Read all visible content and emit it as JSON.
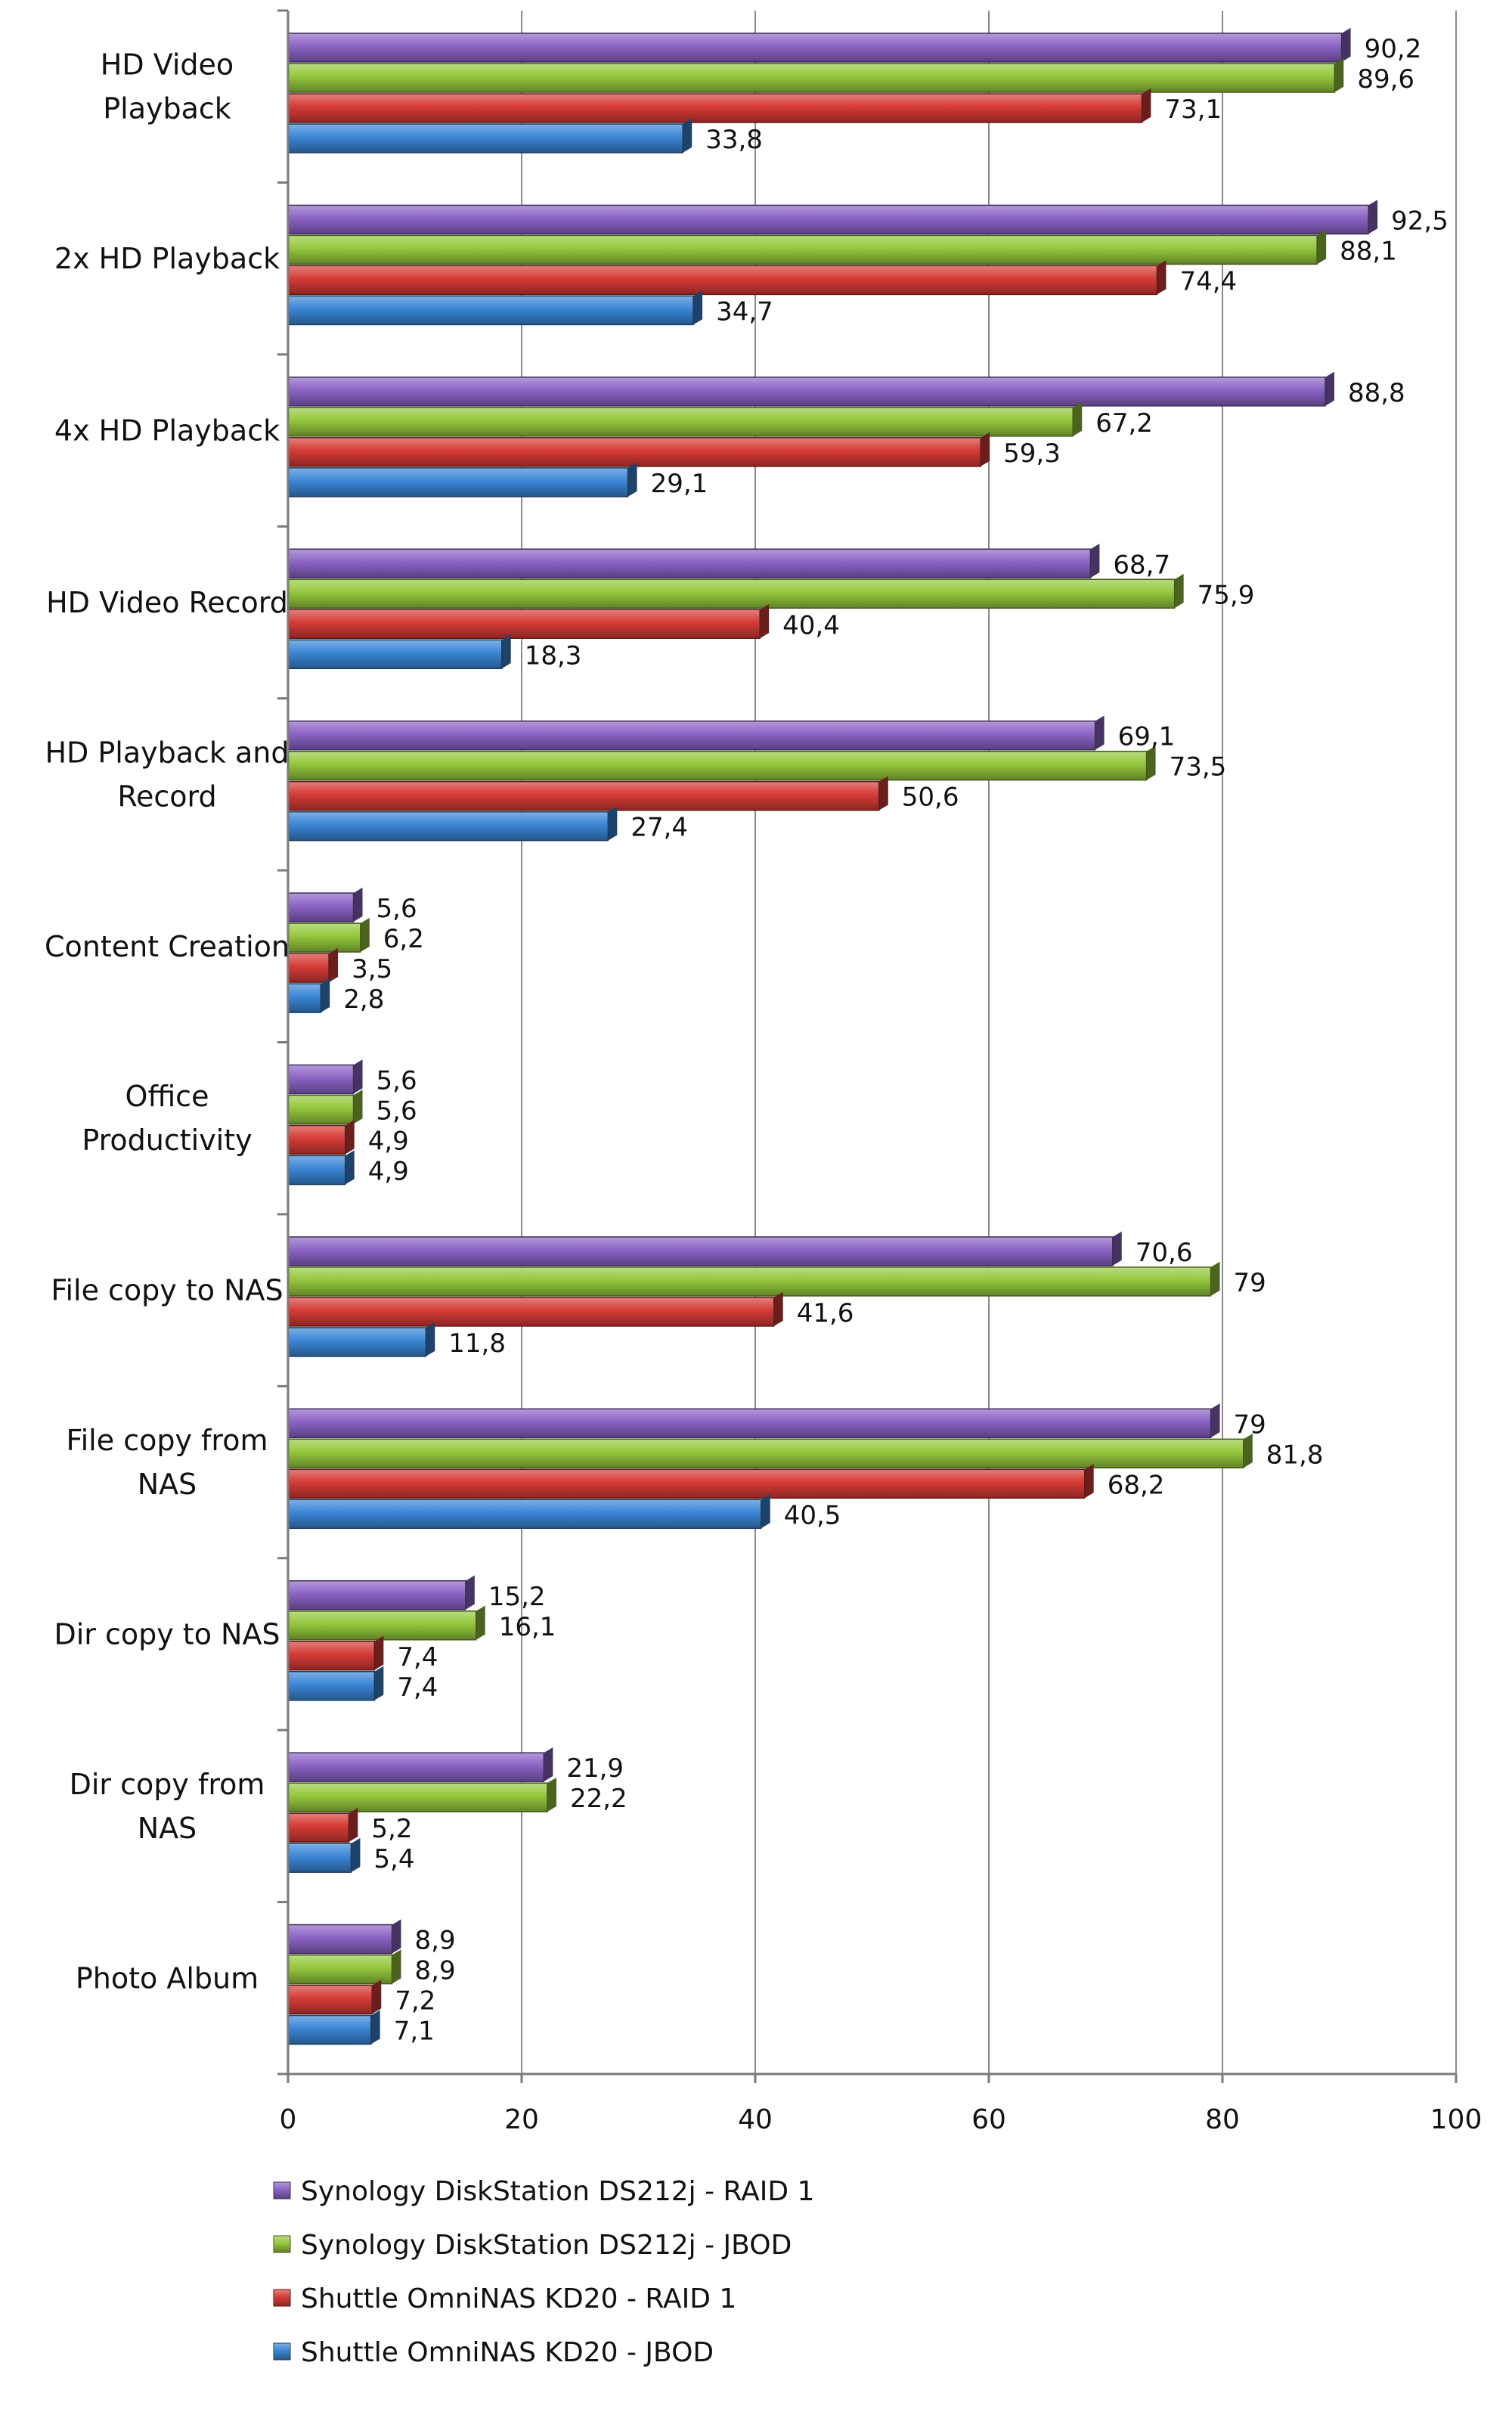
{
  "chart_data": {
    "type": "bar",
    "orientation": "horizontal",
    "title": "",
    "xlabel": "",
    "ylabel": "",
    "xlim": [
      0,
      100
    ],
    "x_ticks": [
      "0",
      "20",
      "40",
      "60",
      "80",
      "100"
    ],
    "grid": "vertical gridlines",
    "legend_position": "bottom-left",
    "categories": [
      "HD Video Playback",
      "2x HD Playback",
      "4x HD Playback",
      "HD Video Record",
      "HD Playback and Record",
      "Content Creation",
      "Office Productivity",
      "File copy to NAS",
      "File copy from NAS",
      "Dir copy to NAS",
      "Dir copy from NAS",
      "Photo Album"
    ],
    "category_lines": [
      [
        "HD Video",
        "Playback"
      ],
      [
        "2x HD Playback"
      ],
      [
        "4x HD Playback"
      ],
      [
        "HD Video Record"
      ],
      [
        "HD Playback and",
        "Record"
      ],
      [
        "Content Creation"
      ],
      [
        "Office",
        "Productivity"
      ],
      [
        "File copy to NAS"
      ],
      [
        "File copy from",
        "NAS"
      ],
      [
        "Dir copy to NAS"
      ],
      [
        "Dir copy from",
        "NAS"
      ],
      [
        "Photo Album"
      ]
    ],
    "series": [
      {
        "name": "Synology DiskStation DS212j - RAID 1",
        "color": "#8b63c5",
        "values": [
          90.2,
          92.5,
          88.8,
          68.7,
          69.1,
          5.6,
          5.6,
          70.6,
          79,
          15.2,
          21.9,
          8.9
        ],
        "labels": [
          "90,2",
          "92,5",
          "88,8",
          "68,7",
          "69,1",
          "5,6",
          "5,6",
          "70,6",
          "79",
          "15,2",
          "21,9",
          "8,9"
        ]
      },
      {
        "name": "Synology DiskStation DS212j - JBOD",
        "color": "#94c83c",
        "values": [
          89.6,
          88.1,
          67.2,
          75.9,
          73.5,
          6.2,
          5.6,
          79,
          81.8,
          16.1,
          22.2,
          8.9
        ],
        "labels": [
          "89,6",
          "88,1",
          "67,2",
          "75,9",
          "73,5",
          "6,2",
          "5,6",
          "79",
          "81,8",
          "16,1",
          "22,2",
          "8,9"
        ]
      },
      {
        "name": "Shuttle OmniNAS KD20 - RAID 1",
        "color": "#d63b36",
        "values": [
          73.1,
          74.4,
          59.3,
          40.4,
          50.6,
          3.5,
          4.9,
          41.6,
          68.2,
          7.4,
          5.2,
          7.2
        ],
        "labels": [
          "73,1",
          "74,4",
          "59,3",
          "40,4",
          "50,6",
          "3,5",
          "4,9",
          "41,6",
          "68,2",
          "7,4",
          "5,2",
          "7,2"
        ]
      },
      {
        "name": "Shuttle OmniNAS KD20 - JBOD",
        "color": "#3a86d6",
        "values": [
          33.8,
          34.7,
          29.1,
          18.3,
          27.4,
          2.8,
          4.9,
          11.8,
          40.5,
          7.4,
          5.4,
          7.1
        ],
        "labels": [
          "33,8",
          "34,7",
          "29,1",
          "18,3",
          "27,4",
          "2,8",
          "4,9",
          "11,8",
          "40,5",
          "7,4",
          "5,4",
          "7,1"
        ]
      }
    ]
  }
}
